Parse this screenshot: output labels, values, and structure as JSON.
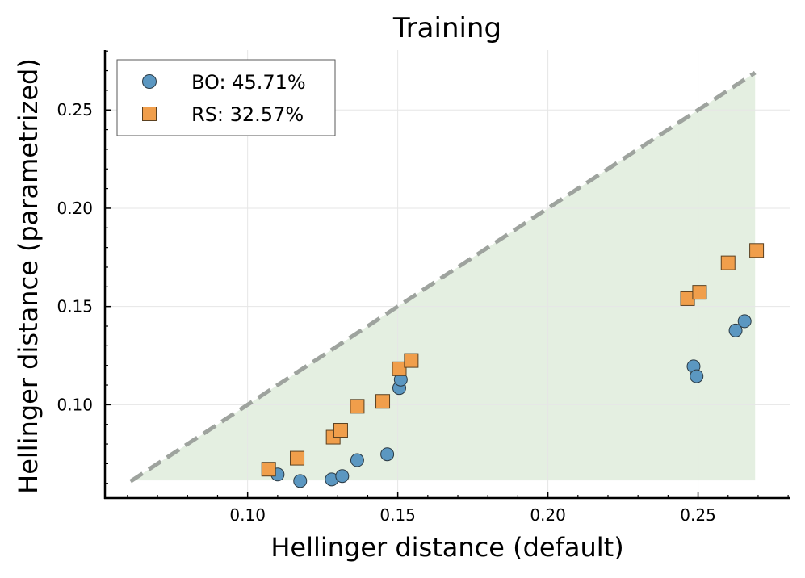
{
  "chart_data": {
    "type": "scatter",
    "title": "Training",
    "xlabel": "Hellinger distance (default)",
    "ylabel": "Hellinger distance (parametrized)",
    "xlim": [
      0.0525,
      0.2805
    ],
    "ylim": [
      0.0525,
      0.2805
    ],
    "xticks": [
      0.1,
      0.15,
      0.2,
      0.25
    ],
    "yticks": [
      0.1,
      0.15,
      0.2,
      0.25
    ],
    "xtick_labels": [
      "0.10",
      "0.15",
      "0.20",
      "0.25"
    ],
    "ytick_labels": [
      "0.10",
      "0.15",
      "0.20",
      "0.25"
    ],
    "grid": true,
    "legend_position": "top-left",
    "diagonal": {
      "style": "dashed",
      "color": "#9ea39e",
      "from": 0.061,
      "to": 0.269
    },
    "fill_region": {
      "color": "#e4efe1",
      "x_from": 0.061,
      "x_to": 0.269,
      "y_floor": 0.0615
    },
    "series": [
      {
        "name": "BO: 45.71%",
        "marker": "circle",
        "color": "#5b97c1",
        "points": [
          [
            0.11,
            0.0645
          ],
          [
            0.1175,
            0.0612
          ],
          [
            0.128,
            0.062
          ],
          [
            0.1315,
            0.0637
          ],
          [
            0.1365,
            0.0718
          ],
          [
            0.1465,
            0.0748
          ],
          [
            0.1505,
            0.1085
          ],
          [
            0.151,
            0.1128
          ],
          [
            0.2485,
            0.1195
          ],
          [
            0.2495,
            0.1145
          ],
          [
            0.2625,
            0.1378
          ],
          [
            0.2655,
            0.1425
          ]
        ]
      },
      {
        "name": "RS: 32.57%",
        "marker": "square",
        "color": "#f09e4b",
        "points": [
          [
            0.107,
            0.0672
          ],
          [
            0.1165,
            0.0728
          ],
          [
            0.1285,
            0.0835
          ],
          [
            0.131,
            0.087
          ],
          [
            0.1365,
            0.0992
          ],
          [
            0.145,
            0.1017
          ],
          [
            0.1505,
            0.1183
          ],
          [
            0.1545,
            0.1225
          ],
          [
            0.2465,
            0.154
          ],
          [
            0.2505,
            0.1572
          ],
          [
            0.26,
            0.1722
          ],
          [
            0.2695,
            0.1785
          ]
        ]
      }
    ]
  }
}
